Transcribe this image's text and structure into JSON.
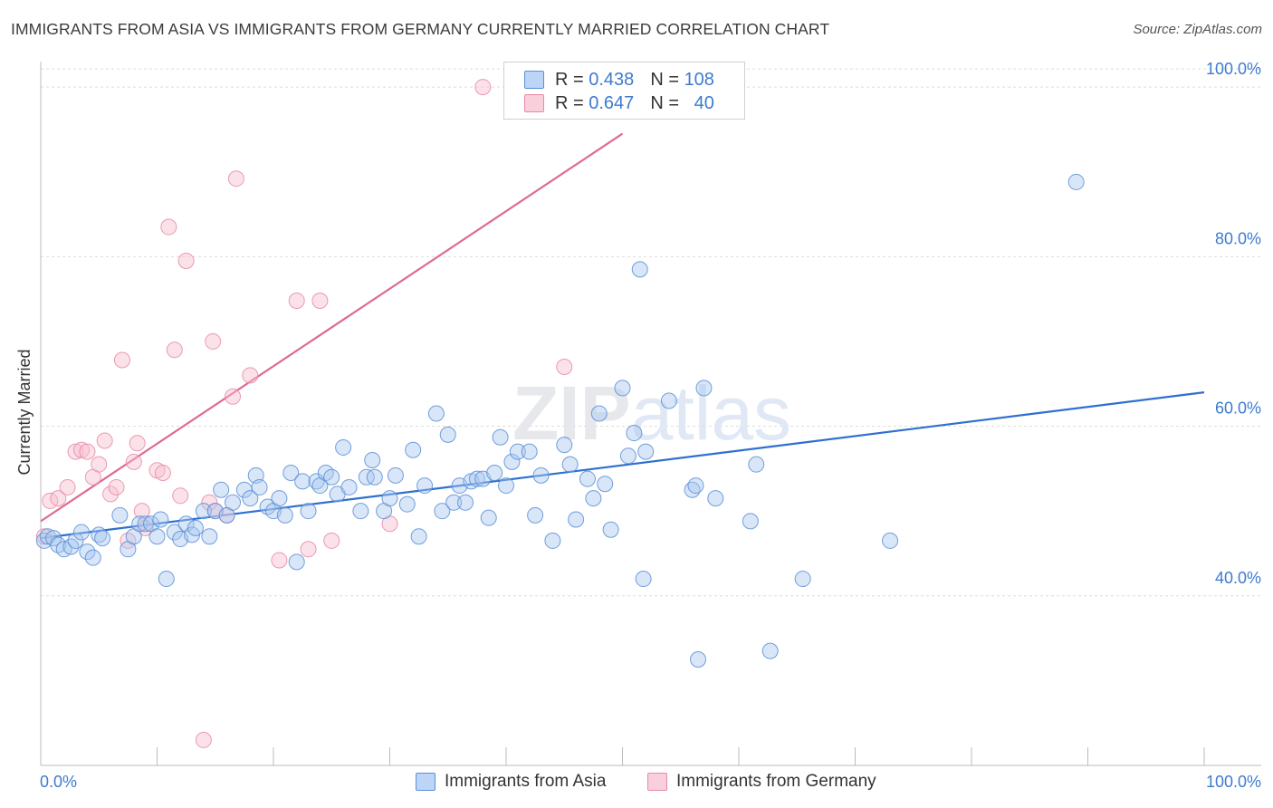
{
  "title": "IMMIGRANTS FROM ASIA VS IMMIGRANTS FROM GERMANY CURRENTLY MARRIED CORRELATION CHART",
  "source": "Source: ZipAtlas.com",
  "legend": {
    "r_label": "R =",
    "n_label": "N =",
    "rows": [
      {
        "r": "0.438",
        "n": "108",
        "color": "#a9c8f0",
        "border": "#5a8fd6"
      },
      {
        "r": "0.647",
        "n": "40",
        "color": "#f7bfd0",
        "border": "#e58aa7"
      }
    ]
  },
  "bottom_legend": [
    "Immigrants from Asia",
    "Immigrants from Germany"
  ],
  "watermark": "ZIPatlas",
  "chart_data": {
    "type": "scatter",
    "title": "IMMIGRANTS FROM ASIA VS IMMIGRANTS FROM GERMANY CURRENTLY MARRIED CORRELATION CHART",
    "xlabel": "",
    "ylabel": "Currently Married",
    "xlim": [
      0,
      100
    ],
    "ylim": [
      20,
      103
    ],
    "x_ticks": [
      "0.0%",
      "100.0%"
    ],
    "y_ticks": [
      {
        "value": 40,
        "label": "40.0%"
      },
      {
        "value": 60,
        "label": "60.0%"
      },
      {
        "value": 80,
        "label": "80.0%"
      },
      {
        "value": 100,
        "label": "100.0%"
      }
    ],
    "grid": "horizontal dashed",
    "legend_position": "top-center",
    "series": [
      {
        "name": "Immigrants from Asia",
        "color": "#5b8fd6",
        "trend": {
          "x0": 0,
          "y0": 46.8,
          "x1": 100,
          "y1": 64.0,
          "color": "#2f6fd0"
        },
        "points": [
          [
            0.3,
            46.5
          ],
          [
            0.6,
            47
          ],
          [
            1.1,
            46.8
          ],
          [
            1.5,
            46
          ],
          [
            2,
            45.5
          ],
          [
            2.6,
            45.8
          ],
          [
            3,
            46.5
          ],
          [
            3.5,
            47.5
          ],
          [
            4,
            45.2
          ],
          [
            4.5,
            44.5
          ],
          [
            5,
            47.2
          ],
          [
            5.3,
            46.8
          ],
          [
            6.8,
            49.5
          ],
          [
            7.5,
            45.5
          ],
          [
            8,
            47
          ],
          [
            8.5,
            48.5
          ],
          [
            9,
            48.5
          ],
          [
            9.5,
            48.5
          ],
          [
            10,
            47
          ],
          [
            10.3,
            49
          ],
          [
            10.8,
            42
          ],
          [
            11.5,
            47.5
          ],
          [
            12,
            46.7
          ],
          [
            12.5,
            48.5
          ],
          [
            13,
            47.2
          ],
          [
            13.3,
            48
          ],
          [
            14,
            50
          ],
          [
            14.5,
            47
          ],
          [
            15,
            50
          ],
          [
            15.5,
            52.5
          ],
          [
            16,
            49.5
          ],
          [
            16.5,
            51
          ],
          [
            17.5,
            52.5
          ],
          [
            18,
            51.5
          ],
          [
            18.5,
            54.2
          ],
          [
            18.8,
            52.8
          ],
          [
            19.5,
            50.5
          ],
          [
            20,
            50
          ],
          [
            20.5,
            51.5
          ],
          [
            21,
            49.5
          ],
          [
            21.5,
            54.5
          ],
          [
            22,
            44
          ],
          [
            22.5,
            53.5
          ],
          [
            23,
            50
          ],
          [
            23.7,
            53.5
          ],
          [
            24,
            53
          ],
          [
            24.5,
            54.5
          ],
          [
            25,
            54
          ],
          [
            25.5,
            52
          ],
          [
            26,
            57.5
          ],
          [
            26.5,
            52.8
          ],
          [
            27.5,
            50
          ],
          [
            28,
            54
          ],
          [
            28.5,
            56
          ],
          [
            28.7,
            54
          ],
          [
            29.5,
            50
          ],
          [
            30,
            51.5
          ],
          [
            30.5,
            54.2
          ],
          [
            31.5,
            50.8
          ],
          [
            32,
            57.2
          ],
          [
            32.5,
            47
          ],
          [
            33,
            53
          ],
          [
            34,
            61.5
          ],
          [
            34.5,
            50
          ],
          [
            35,
            59
          ],
          [
            35.5,
            51
          ],
          [
            36,
            53
          ],
          [
            36.5,
            51
          ],
          [
            37,
            53.5
          ],
          [
            37.5,
            53.8
          ],
          [
            38,
            53.8
          ],
          [
            38.5,
            49.2
          ],
          [
            39,
            54.5
          ],
          [
            39.5,
            58.7
          ],
          [
            40,
            53
          ],
          [
            40.5,
            55.8
          ],
          [
            41,
            57
          ],
          [
            42,
            57
          ],
          [
            42.5,
            49.5
          ],
          [
            43,
            54.2
          ],
          [
            44,
            46.5
          ],
          [
            45,
            57.8
          ],
          [
            45.5,
            55.5
          ],
          [
            46,
            49
          ],
          [
            47,
            53.8
          ],
          [
            47.5,
            51.5
          ],
          [
            48,
            61.5
          ],
          [
            48.5,
            53.2
          ],
          [
            49,
            47.8
          ],
          [
            50,
            64.5
          ],
          [
            50.5,
            56.5
          ],
          [
            51,
            59.2
          ],
          [
            51.5,
            78.5
          ],
          [
            51.8,
            42
          ],
          [
            52,
            57
          ],
          [
            54,
            63
          ],
          [
            56,
            52.5
          ],
          [
            56.3,
            53
          ],
          [
            56.5,
            32.5
          ],
          [
            57,
            64.5
          ],
          [
            58,
            51.5
          ],
          [
            61,
            48.8
          ],
          [
            61.5,
            55.5
          ],
          [
            62.7,
            33.5
          ],
          [
            65.5,
            42
          ],
          [
            73,
            46.5
          ],
          [
            89,
            88.8
          ]
        ]
      },
      {
        "name": "Immigrants from Germany",
        "color": "#e88aa8",
        "trend": {
          "x0": 0,
          "y0": 48.8,
          "x1": 50,
          "y1": 94.5,
          "color": "#e06a92"
        },
        "points": [
          [
            0.3,
            47
          ],
          [
            0.8,
            51.2
          ],
          [
            1.5,
            51.5
          ],
          [
            2.3,
            52.8
          ],
          [
            3,
            57
          ],
          [
            3.5,
            57.2
          ],
          [
            4,
            57
          ],
          [
            4.5,
            54
          ],
          [
            5,
            55.5
          ],
          [
            5.5,
            58.3
          ],
          [
            6,
            52
          ],
          [
            6.5,
            52.8
          ],
          [
            7,
            67.8
          ],
          [
            7.5,
            46.5
          ],
          [
            8,
            55.8
          ],
          [
            8.3,
            58
          ],
          [
            8.7,
            50
          ],
          [
            9,
            48
          ],
          [
            10,
            54.8
          ],
          [
            10.5,
            54.5
          ],
          [
            11,
            83.5
          ],
          [
            11.5,
            69
          ],
          [
            12,
            51.8
          ],
          [
            12.5,
            79.5
          ],
          [
            14,
            23
          ],
          [
            14.5,
            51
          ],
          [
            14.8,
            70
          ],
          [
            15,
            50
          ],
          [
            16,
            49.5
          ],
          [
            16.5,
            63.5
          ],
          [
            16.8,
            89.2
          ],
          [
            18,
            66
          ],
          [
            20.5,
            44.2
          ],
          [
            22,
            74.8
          ],
          [
            23,
            45.5
          ],
          [
            24,
            74.8
          ],
          [
            25,
            46.5
          ],
          [
            30,
            48.5
          ],
          [
            38,
            100
          ],
          [
            45,
            67
          ]
        ]
      }
    ]
  }
}
